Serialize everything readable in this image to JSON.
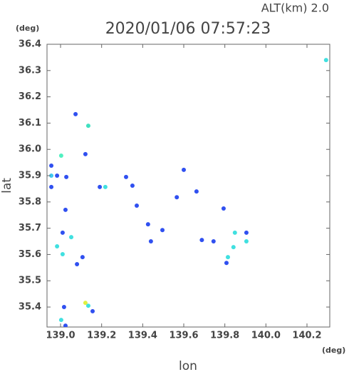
{
  "chart_data": {
    "type": "scatter",
    "title": "2020/01/06 07:57:23",
    "subtitle": "ALT(km) 2.0",
    "y_unit": "(deg)",
    "x_unit": "(deg)",
    "x_label": "lon",
    "y_label": "lat",
    "xlim": [
      138.934,
      140.311
    ],
    "ylim": [
      35.324,
      36.4
    ],
    "xticks": [
      {
        "value": 139.0,
        "label": "139.0"
      },
      139.2,
      139.4,
      139.6,
      139.8,
      {
        "value": 140.0,
        "label": "140.0"
      },
      140.2
    ],
    "yticks": [
      35.4,
      35.5,
      35.6,
      35.7,
      35.8,
      35.9,
      {
        "value": 36.0,
        "label": "36.0"
      },
      36.1,
      36.2,
      36.3,
      36.4
    ],
    "x": [
      140.293,
      139.073,
      139.135,
      139.121,
      139.003,
      138.955,
      138.955,
      138.983,
      139.028,
      138.955,
      139.191,
      139.218,
      139.319,
      139.35,
      139.024,
      139.371,
      139.6,
      139.566,
      139.662,
      139.794,
      139.426,
      139.496,
      139.01,
      139.052,
      138.983,
      139.01,
      139.08,
      139.107,
      139.44,
      139.688,
      139.745,
      139.849,
      139.905,
      139.905,
      139.815,
      139.808,
      139.842,
      139.121,
      139.135,
      139.156,
      139.003,
      139.024,
      139.017
    ],
    "y": [
      36.34,
      36.134,
      36.09,
      35.982,
      35.976,
      35.938,
      35.9,
      35.9,
      35.895,
      35.857,
      35.857,
      35.857,
      35.895,
      35.862,
      35.77,
      35.786,
      35.922,
      35.818,
      35.84,
      35.775,
      35.715,
      35.693,
      35.683,
      35.666,
      35.631,
      35.601,
      35.563,
      35.59,
      35.65,
      35.655,
      35.65,
      35.683,
      35.683,
      35.65,
      35.59,
      35.568,
      35.628,
      35.416,
      35.405,
      35.384,
      35.351,
      35.329,
      35.4
    ],
    "colors": [
      "#40e0e0",
      "#3050f0",
      "#40e0c0",
      "#3050f0",
      "#50f0c0",
      "#3050f0",
      "#40c8f0",
      "#3050f0",
      "#3050f0",
      "#3050f0",
      "#3050f0",
      "#40e0e0",
      "#3050f0",
      "#3050f0",
      "#3050f0",
      "#3050f0",
      "#3050f0",
      "#3050f0",
      "#3050f0",
      "#3050f0",
      "#3050f0",
      "#3050f0",
      "#3050f0",
      "#40e0e0",
      "#40e0e0",
      "#40e0e0",
      "#3050f0",
      "#3050f0",
      "#3050f0",
      "#3050f0",
      "#3050f0",
      "#40e0e0",
      "#3050f0",
      "#40e0e0",
      "#40e0e0",
      "#3050f0",
      "#40e0e0",
      "#e0f040",
      "#40e0e0",
      "#3050f0",
      "#40e0e0",
      "#3050f0",
      "#3050f0"
    ]
  }
}
